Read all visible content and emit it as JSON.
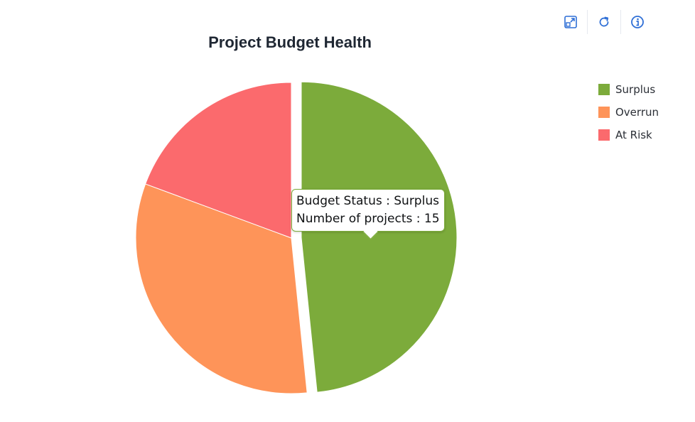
{
  "toolbar": {
    "expand_icon": "expand-icon",
    "refresh_icon": "refresh-icon",
    "info_icon": "info-icon",
    "icon_color": "#2f6fd6"
  },
  "chart_data": {
    "type": "pie",
    "title": "Project Budget Health",
    "categories": [
      "Surplus",
      "Overrun",
      "At Risk"
    ],
    "values": [
      15,
      10,
      6
    ],
    "colors": [
      "#7cab3b",
      "#fe9459",
      "#fb6a6d"
    ],
    "exploded": "Surplus",
    "legend": "top-right",
    "tooltip": {
      "line1_label": "Budget Status : Surplus",
      "line2_label": "Number of projects : 15"
    }
  }
}
